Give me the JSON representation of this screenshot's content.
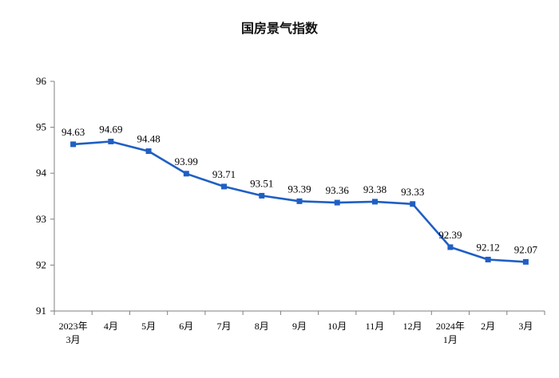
{
  "chart_data": {
    "type": "line",
    "title": "国房景气指数",
    "xlabel": "",
    "ylabel": "",
    "ylim": [
      91,
      96
    ],
    "yticks": [
      91,
      92,
      93,
      94,
      95,
      96
    ],
    "grid": false,
    "legend": "none",
    "line_color": "#1f5fc4",
    "categories": [
      [
        "2023年",
        "3月"
      ],
      [
        "4月"
      ],
      [
        "5月"
      ],
      [
        "6月"
      ],
      [
        "7月"
      ],
      [
        "8月"
      ],
      [
        "9月"
      ],
      [
        "10月"
      ],
      [
        "11月"
      ],
      [
        "12月"
      ],
      [
        "2024年",
        "1月"
      ],
      [
        "2月"
      ],
      [
        "3月"
      ]
    ],
    "values": [
      94.63,
      94.69,
      94.48,
      93.99,
      93.71,
      93.51,
      93.39,
      93.36,
      93.38,
      93.33,
      92.39,
      92.12,
      92.07
    ],
    "data_labels": [
      "94.63",
      "94.69",
      "94.48",
      "93.99",
      "93.71",
      "93.51",
      "93.39",
      "93.36",
      "93.38",
      "93.33",
      "92.39",
      "92.12",
      "92.07"
    ]
  }
}
